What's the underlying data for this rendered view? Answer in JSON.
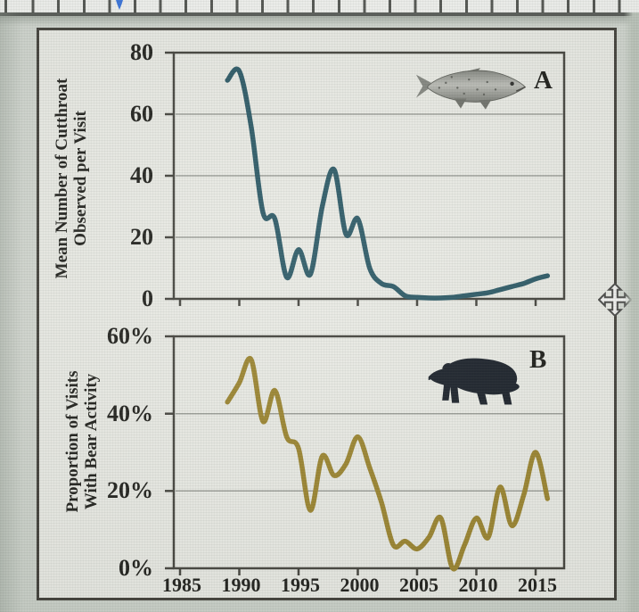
{
  "window": {
    "background_color": "#d0d5ce",
    "ruler_marker_color": "#3a75dd",
    "icons": {
      "move_handle": "move-cursor-icon",
      "panel_a_icon": "cutthroat-trout",
      "panel_b_icon": "bear-silhouette"
    }
  },
  "figure": {
    "paper_color": "#e9eae4",
    "xticks": [
      "1985",
      "1990",
      "1995",
      "2000",
      "2005",
      "2010",
      "2015"
    ],
    "panels": [
      {
        "label": "A",
        "ylabel_line1": "Mean Number of Cutthroat",
        "ylabel_line2": "Observed per Visit",
        "yticks": [
          "80",
          "60",
          "40",
          "20",
          "0"
        ],
        "line_color": "#2c5966",
        "icon": "trout-icon"
      },
      {
        "label": "B",
        "ylabel_line1": "Proportion of Visits",
        "ylabel_line2": "With Bear Activity",
        "yticks": [
          "60%",
          "40%",
          "20%",
          "0%"
        ],
        "line_color": "#9c8530",
        "icon": "bear-icon"
      }
    ]
  },
  "chart_data": [
    {
      "type": "line",
      "panel": "A",
      "ylabel": "Mean Number of Cutthroat Observed per Visit",
      "ylim": [
        0,
        80
      ],
      "yticks": [
        0,
        20,
        40,
        60,
        80
      ],
      "xlim": [
        1984.5,
        2017
      ],
      "xticks": [
        1985,
        1990,
        1995,
        2000,
        2005,
        2010,
        2015
      ],
      "grid": true,
      "legend": "none",
      "line_color": "#2c5966",
      "x": [
        1989,
        1990,
        1991,
        1992,
        1993,
        1994,
        1995,
        1996,
        1997,
        1998,
        1999,
        2000,
        2001,
        2002,
        2003,
        2004,
        2005,
        2006,
        2007,
        2008,
        2009,
        2010,
        2011,
        2012,
        2013,
        2014,
        2015,
        2016
      ],
      "values": [
        71,
        74,
        56,
        28,
        26,
        7,
        16,
        8,
        30,
        42,
        21,
        26,
        10,
        5,
        4,
        1,
        0.5,
        0.3,
        0.3,
        0.5,
        1,
        1.5,
        2,
        3,
        4,
        5,
        6.5,
        7.5
      ]
    },
    {
      "type": "line",
      "panel": "B",
      "ylabel": "Proportion of Visits With Bear Activity",
      "ylim": [
        0,
        60
      ],
      "ylim_unit": "%",
      "yticks": [
        0,
        20,
        40,
        60
      ],
      "xlim": [
        1984.5,
        2017
      ],
      "xticks": [
        1985,
        1990,
        1995,
        2000,
        2005,
        2010,
        2015
      ],
      "grid": true,
      "legend": "none",
      "line_color": "#9c8530",
      "x": [
        1989,
        1990,
        1991,
        1992,
        1993,
        1994,
        1995,
        1996,
        1997,
        1998,
        1999,
        2000,
        2001,
        2002,
        2003,
        2004,
        2005,
        2006,
        2007,
        2008,
        2009,
        2010,
        2011,
        2012,
        2013,
        2014,
        2015,
        2016
      ],
      "values": [
        43,
        48,
        54,
        38,
        46,
        34,
        31,
        15,
        29,
        24,
        27,
        34,
        26,
        17,
        6,
        7,
        5,
        8,
        13,
        0,
        6,
        13,
        8,
        21,
        11,
        19,
        30,
        18
      ]
    }
  ]
}
